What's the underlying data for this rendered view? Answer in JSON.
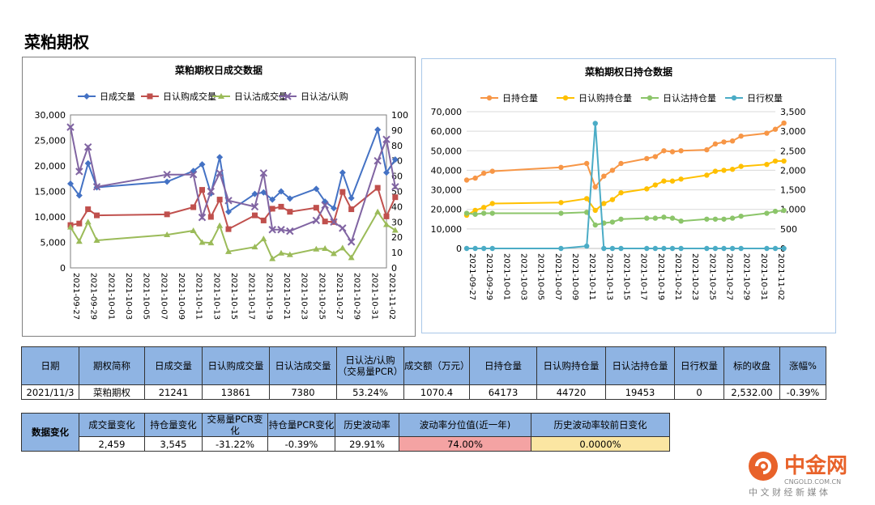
{
  "page_title": "菜粕期权",
  "chart_data": [
    {
      "type": "line",
      "title": "菜粕期权日成交数据",
      "x": [
        "2021-09-27",
        "2021-09-28",
        "2021-09-29",
        "2021-09-30",
        "2021-10-08",
        "2021-10-11",
        "2021-10-12",
        "2021-10-13",
        "2021-10-14",
        "2021-10-15",
        "2021-10-18",
        "2021-10-19",
        "2021-10-20",
        "2021-10-21",
        "2021-10-22",
        "2021-10-25",
        "2021-10-26",
        "2021-10-27",
        "2021-10-28",
        "2021-10-29",
        "2021-11-01",
        "2021-11-02",
        "2021-11-03"
      ],
      "xticks": [
        "2021-09-27",
        "2021-09-29",
        "2021-10-01",
        "2021-10-03",
        "2021-10-05",
        "2021-10-07",
        "2021-10-09",
        "2021-10-11",
        "2021-10-13",
        "2021-10-15",
        "2021-10-17",
        "2021-10-19",
        "2021-10-21",
        "2021-10-23",
        "2021-10-25",
        "2021-10-27",
        "2021-10-29",
        "2021-10-31",
        "2021-11-02"
      ],
      "ylim_left": [
        0,
        30000
      ],
      "yticks_left": [
        "0",
        "5,000",
        "10,000",
        "15,000",
        "20,000",
        "25,000",
        "30,000"
      ],
      "ylim_right": [
        0,
        100
      ],
      "yticks_right": [
        "0",
        "10",
        "20",
        "30",
        "40",
        "50",
        "60",
        "70",
        "80",
        "90",
        "100"
      ],
      "series": [
        {
          "name": "日成交量",
          "axis": "left",
          "color": "#4472c4",
          "marker": "diamond",
          "values": [
            16500,
            14200,
            20500,
            15800,
            16900,
            19000,
            20300,
            14600,
            21700,
            11000,
            14500,
            14800,
            13400,
            15000,
            13600,
            15500,
            13000,
            11700,
            18700,
            13700,
            27100,
            18700,
            21241
          ]
        },
        {
          "name": "日认购成交量",
          "axis": "left",
          "color": "#c0504d",
          "marker": "square",
          "values": [
            8400,
            8700,
            11500,
            10300,
            10500,
            11900,
            15300,
            10000,
            13400,
            7600,
            10300,
            9300,
            11600,
            12000,
            11000,
            11800,
            9100,
            9000,
            14900,
            11500,
            15700,
            10100,
            13861
          ]
        },
        {
          "name": "日认沽成交量",
          "axis": "left",
          "color": "#9bbb59",
          "marker": "triangle",
          "values": [
            8000,
            5200,
            9000,
            5400,
            6500,
            7300,
            5000,
            4900,
            8300,
            3200,
            4100,
            5700,
            1800,
            2900,
            2600,
            3700,
            3800,
            2800,
            3900,
            2000,
            11000,
            8500,
            7380
          ]
        },
        {
          "name": "日认沽/认购",
          "axis": "right",
          "color": "#8064a2",
          "marker": "x",
          "values": [
            92,
            63,
            79,
            53,
            61,
            61,
            33,
            50,
            62,
            44,
            40,
            62,
            25,
            25,
            24,
            31,
            41,
            30,
            26,
            17,
            70,
            84,
            53
          ]
        }
      ],
      "legend_position": "top",
      "grid": false
    },
    {
      "type": "line",
      "title": "菜粕期权日持仓数据",
      "x": [
        "2021-09-27",
        "2021-09-28",
        "2021-09-29",
        "2021-09-30",
        "2021-10-08",
        "2021-10-11",
        "2021-10-12",
        "2021-10-13",
        "2021-10-14",
        "2021-10-15",
        "2021-10-18",
        "2021-10-19",
        "2021-10-20",
        "2021-10-21",
        "2021-10-22",
        "2021-10-25",
        "2021-10-26",
        "2021-10-27",
        "2021-10-28",
        "2021-10-29",
        "2021-11-01",
        "2021-11-02",
        "2021-11-03"
      ],
      "xticks": [
        "2021-09-27",
        "2021-09-29",
        "2021-10-01",
        "2021-10-03",
        "2021-10-05",
        "2021-10-07",
        "2021-10-09",
        "2021-10-11",
        "2021-10-13",
        "2021-10-15",
        "2021-10-17",
        "2021-10-19",
        "2021-10-21",
        "2021-10-23",
        "2021-10-25",
        "2021-10-27",
        "2021-10-29",
        "2021-10-31",
        "2021-11-02"
      ],
      "ylim_left": [
        0,
        70000
      ],
      "yticks_left": [
        "0",
        "10,000",
        "20,000",
        "30,000",
        "40,000",
        "50,000",
        "60,000",
        "70,000"
      ],
      "ylim_right": [
        0,
        3500
      ],
      "yticks_right": [
        "0",
        "500",
        "1,000",
        "1,500",
        "2,000",
        "2,500",
        "3,000",
        "3,500"
      ],
      "series": [
        {
          "name": "日持仓量",
          "axis": "left",
          "color": "#f79646",
          "marker": "circle",
          "values": [
            35000,
            36000,
            38500,
            39500,
            41500,
            43500,
            31500,
            37000,
            40000,
            43500,
            46000,
            47000,
            50000,
            49500,
            50000,
            50500,
            53500,
            54500,
            55000,
            57500,
            59000,
            61000,
            64173
          ]
        },
        {
          "name": "日认购持仓量",
          "axis": "left",
          "color": "#ffc000",
          "marker": "circle",
          "values": [
            17000,
            19500,
            21000,
            23000,
            23500,
            25500,
            19500,
            23000,
            25000,
            28500,
            30500,
            32500,
            34500,
            34500,
            35500,
            37500,
            39500,
            40000,
            40500,
            42000,
            43000,
            44720,
            44720
          ]
        },
        {
          "name": "日认沽持仓量",
          "axis": "left",
          "color": "#8cc56a",
          "marker": "circle",
          "values": [
            18000,
            17500,
            18000,
            18000,
            18000,
            18500,
            12000,
            13000,
            13500,
            15000,
            15500,
            15500,
            16000,
            15500,
            14000,
            15000,
            15000,
            15000,
            15500,
            16500,
            18000,
            19000,
            19453
          ]
        },
        {
          "name": "日行权量",
          "axis": "right",
          "color": "#4bacc6",
          "marker": "circle",
          "values": [
            0,
            0,
            0,
            0,
            0,
            60,
            3200,
            0,
            0,
            0,
            0,
            0,
            0,
            0,
            0,
            0,
            0,
            0,
            0,
            0,
            0,
            0,
            0
          ]
        }
      ],
      "legend_position": "top",
      "grid": true
    }
  ],
  "table1": {
    "headers": [
      "日期",
      "期权简称",
      "日成交量",
      "日认购成交量",
      "日认沽成交量",
      "日认沽/认购（交易量PCR）",
      "成交额（万元）",
      "日持仓量",
      "日认购持仓量",
      "日认沽持仓量",
      "日行权量",
      "标的收盘",
      "涨幅%"
    ],
    "values": [
      "2021/11/3",
      "菜粕期权",
      "21241",
      "13861",
      "7380",
      "53.24%",
      "1070.4",
      "64173",
      "44720",
      "19453",
      "0",
      "2,532.00",
      "-0.39%"
    ]
  },
  "table2": {
    "side_label": "数据变化",
    "headers": [
      "成交量变化",
      "持仓量变化",
      "交易量PCR变化",
      "持仓量PCR变化",
      "历史波动率",
      "波动率分位值(近一年)",
      "历史波动率较前日变化"
    ],
    "values": [
      "2,459",
      "3,545",
      "-31.22%",
      "-0.39%",
      "29.91%",
      "74.00%",
      "0.0000%"
    ]
  },
  "watermark": {
    "name": "中金网",
    "sub": "CNGOLD.COM.CN",
    "tagline": "中 文 财 经 新 媒 体",
    "color": "#e8622a"
  }
}
